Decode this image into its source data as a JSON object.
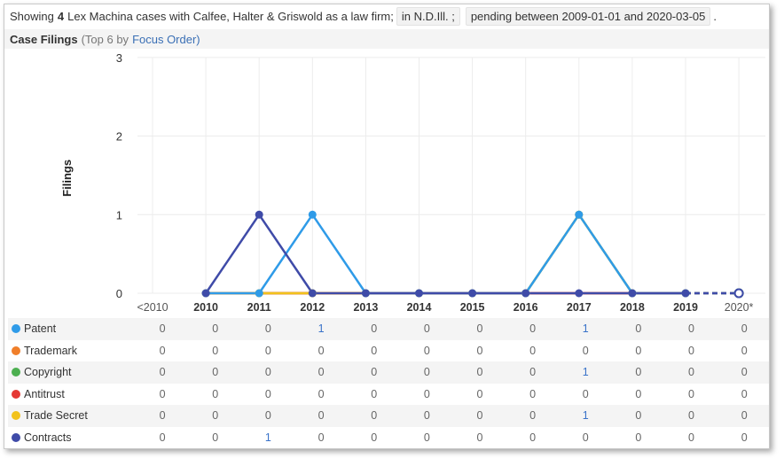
{
  "summary": {
    "prefix": "Showing",
    "count": "4",
    "text": "Lex Machina cases with Calfee, Halter & Griswold as a law firm;",
    "court_chip": "in N.D.Ill. ;",
    "date_chip": "pending between 2009-01-01 and 2020-03-05",
    "suffix": "."
  },
  "section": {
    "title": "Case Filings",
    "note": "(Top 6 by",
    "link": "Focus Order)"
  },
  "chart_data": {
    "type": "line",
    "ylabel": "Filings",
    "ylim": [
      0,
      3
    ],
    "yticks": [
      0,
      1,
      2,
      3
    ],
    "categories": [
      "<2010",
      "2010",
      "2011",
      "2012",
      "2013",
      "2014",
      "2015",
      "2016",
      "2017",
      "2018",
      "2019",
      "2020*"
    ],
    "grid": true,
    "series": [
      {
        "name": "Patent",
        "color": "#2f9be8",
        "values": [
          0,
          0,
          0,
          1,
          0,
          0,
          0,
          0,
          1,
          0,
          0,
          0
        ]
      },
      {
        "name": "Trademark",
        "color": "#f07f2a",
        "values": [
          0,
          0,
          0,
          0,
          0,
          0,
          0,
          0,
          0,
          0,
          0,
          0
        ]
      },
      {
        "name": "Copyright",
        "color": "#4caf50",
        "values": [
          0,
          0,
          0,
          0,
          0,
          0,
          0,
          0,
          1,
          0,
          0,
          0
        ]
      },
      {
        "name": "Antitrust",
        "color": "#e53935",
        "values": [
          0,
          0,
          0,
          0,
          0,
          0,
          0,
          0,
          0,
          0,
          0,
          0
        ]
      },
      {
        "name": "Trade Secret",
        "color": "#f2c21b",
        "values": [
          0,
          0,
          0,
          0,
          0,
          0,
          0,
          0,
          1,
          0,
          0,
          0
        ]
      },
      {
        "name": "Contracts",
        "color": "#3f4ba8",
        "values": [
          0,
          0,
          1,
          0,
          0,
          0,
          0,
          0,
          0,
          0,
          0,
          0
        ]
      }
    ]
  }
}
